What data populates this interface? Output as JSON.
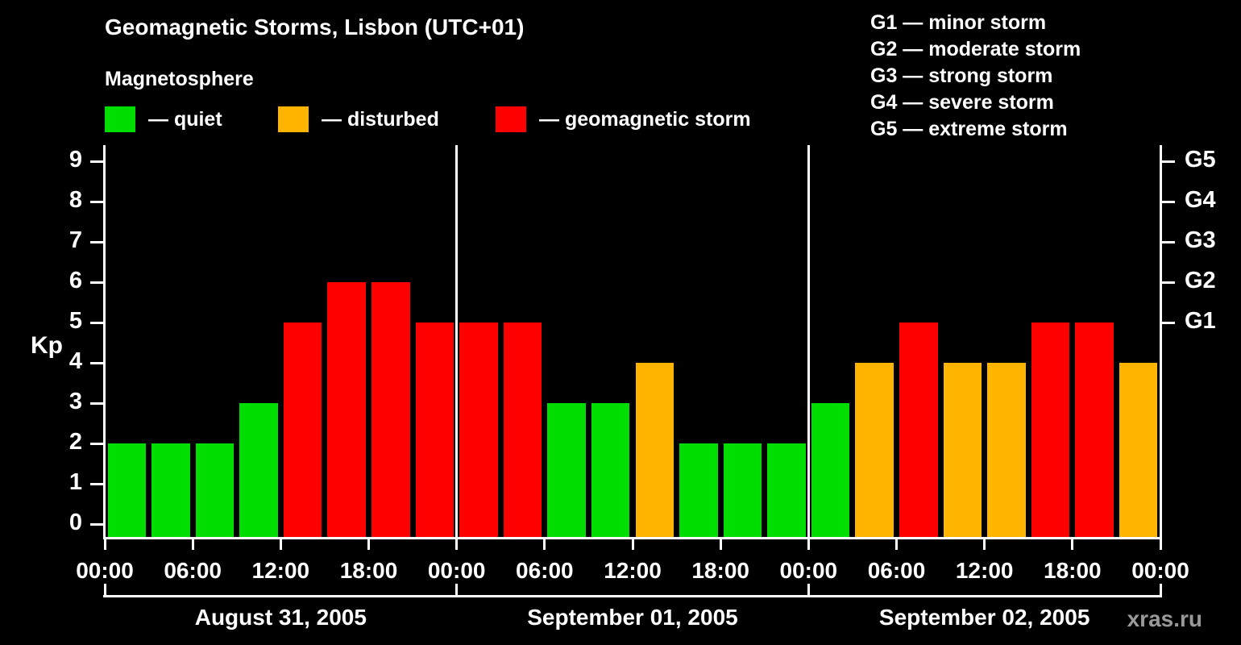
{
  "title": "Geomagnetic Storms, Lisbon (UTC+01)",
  "subtitle": "Magnetosphere",
  "legend": {
    "quiet": "— quiet",
    "disturbed": "— disturbed",
    "storm": "— geomagnetic storm"
  },
  "g_legend": [
    "G1 — minor storm",
    "G2 — moderate storm",
    "G3 — strong storm",
    "G4 — severe storm",
    "G5 — extreme storm"
  ],
  "colors": {
    "quiet": "#00dd00",
    "disturbed": "#ffb400",
    "storm": "#ff0000",
    "axis": "#ffffff",
    "background": "#000000",
    "watermark": "#999999"
  },
  "y_axis": {
    "label": "Kp",
    "ticks": [
      0,
      1,
      2,
      3,
      4,
      5,
      6,
      7,
      8,
      9
    ]
  },
  "right_axis": {
    "labels": [
      {
        "text": "G1",
        "kp": 5
      },
      {
        "text": "G2",
        "kp": 6
      },
      {
        "text": "G3",
        "kp": 7
      },
      {
        "text": "G4",
        "kp": 8
      },
      {
        "text": "G5",
        "kp": 9
      }
    ]
  },
  "x_axis": {
    "time_labels": [
      "00:00",
      "06:00",
      "12:00",
      "18:00",
      "00:00",
      "06:00",
      "12:00",
      "18:00",
      "00:00",
      "06:00",
      "12:00",
      "18:00",
      "00:00"
    ]
  },
  "dates": [
    "August 31, 2005",
    "September 01, 2005",
    "September 02, 2005"
  ],
  "watermark": "xras.ru",
  "chart_data": {
    "type": "bar",
    "title": "Geomagnetic Storms, Lisbon (UTC+01)",
    "ylabel": "Kp",
    "ylim": [
      0,
      9
    ],
    "interval_hours": 3,
    "thresholds": {
      "quiet_max": 3,
      "disturbed": 4,
      "storm_min": 5
    },
    "days": [
      {
        "date": "August 31, 2005",
        "values": [
          2,
          2,
          2,
          3,
          5,
          6,
          6,
          5
        ]
      },
      {
        "date": "September 01, 2005",
        "values": [
          5,
          5,
          3,
          3,
          4,
          2,
          2,
          2
        ]
      },
      {
        "date": "September 02, 2005",
        "values": [
          3,
          4,
          5,
          4,
          4,
          5,
          5,
          4
        ]
      }
    ]
  }
}
